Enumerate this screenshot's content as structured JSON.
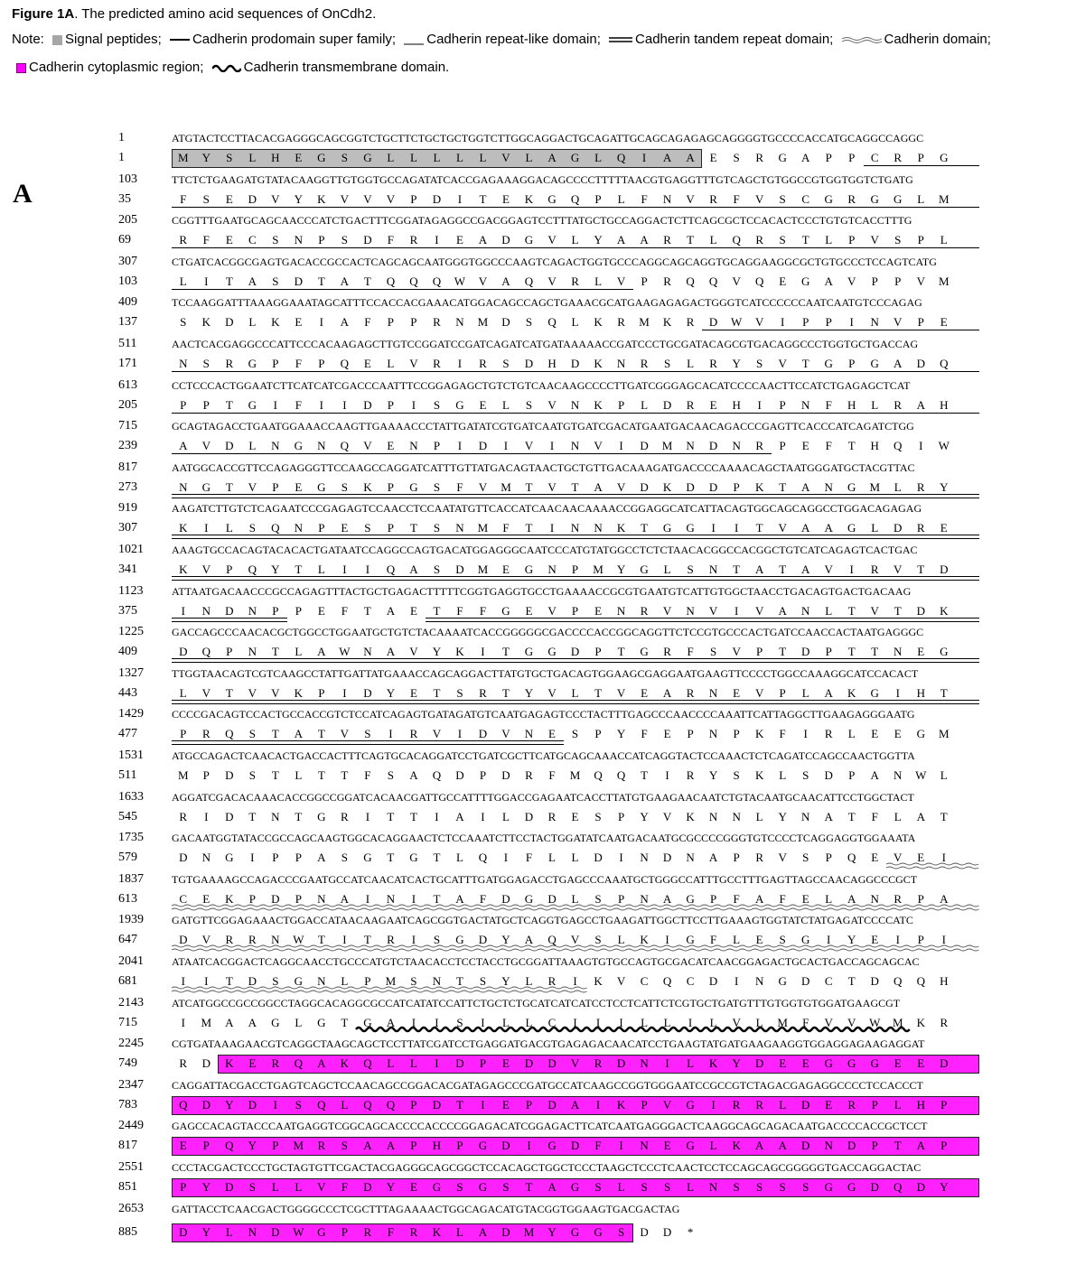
{
  "caption": {
    "title_bold": "Figure 1A",
    "title_rest": ". The predicted amino acid sequences of OnCdh2.",
    "note_label": "Note:",
    "legend": [
      {
        "label": "Signal peptides;",
        "marker": "gray-box-icon"
      },
      {
        "label": "Cadherin prodomain super family;",
        "marker": "thick-line-icon"
      },
      {
        "label": "Cadherin repeat-like domain;",
        "marker": "thin-line-icon"
      },
      {
        "label": "Cadherin tandem repeat domain;",
        "marker": "double-line-icon"
      },
      {
        "label": "Cadherin domain;",
        "marker": "double-wave-icon"
      },
      {
        "label": "Cadherin cytoplasmic region;",
        "marker": "magenta-box-icon"
      },
      {
        "label": "Cadherin transmembrane domain.",
        "marker": "thick-wave-icon"
      }
    ]
  },
  "panel_label": "A",
  "colors": {
    "signal_fill": "#bdbdbd",
    "cytoplasmic_fill": "#ff22ff"
  },
  "rows": [
    {
      "nt_start": "1",
      "nt": "ATGTACTCCTTACACGAGGGCAGCGGTCTGCTTCTGCTGCTGGTCTTGGCAGGACTGCAGATTGCAGCAGAGAGCAGGGGTGCCCCACCATGCAGGCCAGGC",
      "aa_start": "1",
      "aa": "MYSLHEGSGLLLLLVLAGLQIAAESRGAPPCRPG",
      "features": [
        {
          "type": "signal",
          "from": 0,
          "to": 22
        },
        {
          "type": "prodomain",
          "from": 30,
          "to": 34
        }
      ]
    },
    {
      "nt_start": "103",
      "nt": "TTCTCTGAAGATGTATACAAGGTTGTGGTGCCAGATATCACCGAGAAAGGACAGCCCCTTTTTAACGTGAGGTTTGTCAGCTGTGGCCGTGGTGGTCTGATG",
      "aa_start": "35",
      "aa": "FSEDVYKVVVPDITEKGQPLFNVRFVSCGRGGLM",
      "features": [
        {
          "type": "prodomain",
          "from": 0,
          "to": 34
        }
      ]
    },
    {
      "nt_start": "205",
      "nt": "CGGTTTGAATGCAGCAACCCATCTGACTTTCGGATAGAGGCCGACGGAGTCCTTTATGCTGCCAGGACTCTTCAGCGCTCCACACTCCCTGTGTCACCTTTG",
      "aa_start": "69",
      "aa": "RFECSNPSDFRIEADGVLYAARTLQRSTLPVSPL",
      "features": [
        {
          "type": "prodomain",
          "from": 0,
          "to": 34
        }
      ]
    },
    {
      "nt_start": "307",
      "nt": "CTGATCACGGCGAGTGACACCGCCACTCAGCAGCAATGGGTGGCCCAAGTCAGACTGGTGCCCAGGCAGCAGGTGCAGGAAGGCGCTGTGCCCTCCAGTCATG",
      "aa_start": "103",
      "aa": "LITASDTATQQQWVAQVRLVPRQQVQEGAVPPVM",
      "features": [
        {
          "type": "prodomain",
          "from": 0,
          "to": 19
        }
      ]
    },
    {
      "nt_start": "409",
      "nt": "TCCAAGGATTTAAAGGAAATAGCATTTCCACCACGAAACATGGACAGCCAGCTGAAACGCATGAAGAGAGACTGGGTCATCCCCCCAATCAATGTCCCAGAG",
      "aa_start": "137",
      "aa": "SKDLKEIAFPPRNMDSQLKRMKRDWVIPPINVPE",
      "features": [
        {
          "type": "repeatlike",
          "from": 23,
          "to": 34
        }
      ]
    },
    {
      "nt_start": "511",
      "nt": "AACTCACGAGGCCCATTCCCACAAGAGCTTGTCCGGATCCGATCAGATCATGATAAAAACCGATCCCTGCGATACAGCGTGACAGGCCCTGGTGCTGACCAG",
      "aa_start": "171",
      "aa": "NSRGPFPQELVRIRSDHDKNRSLRYSVTGPGADQ",
      "features": [
        {
          "type": "repeatlike",
          "from": 0,
          "to": 34
        }
      ]
    },
    {
      "nt_start": "613",
      "nt": "CCTCCCACTGGAATCTTCATCATCGACCCAATTTCCGGAGAGCTGTCTGTCAACAAGCCCCTTGATCGGGAGCACATCCCCAACTTCCATCTGAGAGCTCAT",
      "aa_start": "205",
      "aa": "PPTGIFIIDPISGELSVNKPLDREHIPNFHLRAH",
      "features": [
        {
          "type": "repeatlike",
          "from": 0,
          "to": 34
        }
      ]
    },
    {
      "nt_start": "715",
      "nt": "GCAGTAGACCTGAATGGAAACCAAGTTGAAAACCCTATTGATATCGTGATCAATGTGATCGACATGAATGACAACAGACCCGAGTTCACCCATCAGATCTGG",
      "aa_start": "239",
      "aa": "AVDLNGNQVENPIDIVINVIDMNDNRPEFTHQIW",
      "features": [
        {
          "type": "repeatlike",
          "from": 0,
          "to": 25
        }
      ]
    },
    {
      "nt_start": "817",
      "nt": "AATGGCACCGTTCCAGAGGGTTCCAAGCCAGGATCATTTGTTATGACAGTAACTGCTGTTGACAAAGATGACCCCAAAACAGCTAATGGGATGCTACGTTAC",
      "aa_start": "273",
      "aa": "NGTVPEGSKPGSFVMTVTAVDKDDPKTANGMLRY",
      "features": [
        {
          "type": "tandem",
          "from": 0,
          "to": 34
        }
      ]
    },
    {
      "nt_start": "919",
      "nt": "AAGATCTTGTCTCAGAATCCCGAGAGTCCAACCTCCAATATGTTCACCATCAACAACAAAACCGGAGGCATCATTACAGTGGCAGCAGGCCTGGACAGAGAG",
      "aa_start": "307",
      "aa": "KILSQNPESPTSNMFTINNKTGGIITVAAGLDRE",
      "features": [
        {
          "type": "tandem",
          "from": 0,
          "to": 34
        }
      ]
    },
    {
      "nt_start": "1021",
      "nt": "AAAGTGCCACAGTACACACTGATAATCCAGGCCAGTGACATGGAGGGCAATCCCATGTATGGCCTCTCTAACACGGCCACGGCTGTCATCAGAGTCACTGAC",
      "aa_start": "341",
      "aa": "KVPQYTLIIQASDMEGNPMYGLSNTATAVIRVTD",
      "features": [
        {
          "type": "tandem",
          "from": 0,
          "to": 34
        }
      ]
    },
    {
      "nt_start": "1123",
      "nt": "ATTAATGACAACCCGCCAGAGTTTACTGCTGAGACTTTTTCGGTGAGGTGCCTGAAAACCGCGTGAATGTCATTGTGGCTAACCTGACAGTGACTGACAAG",
      "aa_start": "375",
      "aa": "INDNPPEFTAETFFGEVPENRVNVIVANLTVTDK",
      "features": [
        {
          "type": "tandem",
          "from": 0,
          "to": 4
        },
        {
          "type": "tandem",
          "from": 11,
          "to": 34
        }
      ]
    },
    {
      "nt_start": "1225",
      "nt": "GACCAGCCCAACACGCTGGCCTGGAATGCTGTCTACAAAATCACCGGGGGCGACCCCACCGGCAGGTTCTCCGTGCCCACTGATCCAACCACTAATGAGGGC",
      "aa_start": "409",
      "aa": "DQPNTLAWNAVYKITGGDPTGRFSVPTDPTTNEG",
      "features": [
        {
          "type": "tandem",
          "from": 0,
          "to": 34
        }
      ]
    },
    {
      "nt_start": "1327",
      "nt": "TTGGTAACAGTCGTCAAGCCTATTGATTATGAAACCAGCAGGACTTATGTGCTGACAGTGGAAGCGAGGAATGAAGTTCCCCTGGCCAAAGGCATCCACACT",
      "aa_start": "443",
      "aa": "LVTVVKPIDYETSRTYVLTVEARNEVPLAKGIHT",
      "features": [
        {
          "type": "tandem",
          "from": 0,
          "to": 34
        }
      ]
    },
    {
      "nt_start": "1429",
      "nt": "CCCCGACAGTCCACTGCCACCGTCTCCATCAGAGTGATAGATGTCAATGAGAGTCCCTACTTTGAGCCCAACCCCAAATTCATTAGGCTTGAAGAGGGAATG",
      "aa_start": "477",
      "aa": "PRQSTATVSIRVIDVNESPYFEPNPKFIRLEEGM",
      "features": [
        {
          "type": "tandem",
          "from": 0,
          "to": 16
        }
      ]
    },
    {
      "nt_start": "1531",
      "nt": "ATGCCAGACTCAACACTGACCACTTTCAGTGCACAGGATCCTGATCGCTTCATGCAGCAAACCATCAGGTACTCCAAACTCTCAGATCCAGCCAACTGGTTA",
      "aa_start": "511",
      "aa": "MPDSTLTTFSAQDPDRFMQQTIRYSKLSDPANWL",
      "features": []
    },
    {
      "nt_start": "1633",
      "nt": "AGGATCGACACAAACACCGGCCGGATCACAACGATTGCCATTTTGGACCGAGAATCACCTTATGTGAAGAACAATCTGTACAATGCAACATTCCTGGCTACT",
      "aa_start": "545",
      "aa": "RIDTNTGRITTIAILDRESPYVKNNLYNATFLAT",
      "features": []
    },
    {
      "nt_start": "1735",
      "nt": "GACAATGGTATACCGCCAGCAAGTGGCACAGGAACTCTCCAAATCTTCCTACTGGATATCAATGACAATGCGCCCCGGGTGTCCCCTCAGGAGGTGGAAATA",
      "aa_start": "579",
      "aa": "DNGIPPASGTGTLQIFLLDINDNAPRVSPQEVEI",
      "features": [
        {
          "type": "cadherin",
          "from": 31,
          "to": 34
        }
      ]
    },
    {
      "nt_start": "1837",
      "nt": "TGTGAAAAGCCAGACCCGAATGCCATCAACATCACTGCATTTGATGGAGACCTGAGCCCAAATGCTGGGCCATTTGCCTTTGAGTTAGCCAACAGGCCCGCT",
      "aa_start": "613",
      "aa": "CEKPDPNAINITAFDGDLSPNAGPFAFELANRPA",
      "features": [
        {
          "type": "cadherin",
          "from": 0,
          "to": 34
        }
      ]
    },
    {
      "nt_start": "1939",
      "nt": "GATGTTCGGAGAAACTGGACCATAACAAGAATCAGCGGTGACTATGCTCAGGTGAGCCTGAAGATTGGCTTCCTTGAAAGTGGTATCTATGAGATCCCCATC",
      "aa_start": "647",
      "aa": "DVRRNWTITRISGDYAQVSLKIGFLESGIYEIPI",
      "features": [
        {
          "type": "cadherin",
          "from": 0,
          "to": 34
        }
      ]
    },
    {
      "nt_start": "2041",
      "nt": "ATAATCACGGACTCAGGCAACCTGCCCATGTCTAACACCTCCTACCTGCGGATTAAAGTGTGCCAGTGCGACATCAACGGAGACTGCACTGACCAGCAGCAC",
      "aa_start": "681",
      "aa": "IITDSGNLPMSNTSYLRIKVCQCDINGDCTDQQH",
      "features": [
        {
          "type": "cadherin",
          "from": 0,
          "to": 17
        }
      ]
    },
    {
      "nt_start": "2143",
      "nt": "ATCATGGCCGCCGGCCTAGGCACAGGCGCCATCATATCCATTCTGCTCTGCATCATCATCCTCCTCATTCTCGTGCTGATGTTTGTGGTGTGGATGAAGCGT",
      "aa_start": "715",
      "aa": "IMAAGLGTGAIISILLCIIILLILVLMFVVWMKR",
      "features": [
        {
          "type": "transmembrane",
          "from": 8,
          "to": 31
        }
      ]
    },
    {
      "nt_start": "2245",
      "nt": "CGTGATAAAGAACGTCAGGCTAAGCAGCTCCTTATCGATCCTGAGGATGACGTGAGAGACAACATCCTGAAGTATGATGAAGAAGGTGGAGGAGAAGAGGAT",
      "aa_start": "749",
      "aa": "RDKERQAKQLLIDPEDDVRDNILKYDEEGGGEED",
      "features": [
        {
          "type": "cytoplasmic",
          "from": 2,
          "to": 34
        }
      ]
    },
    {
      "nt_start": "2347",
      "nt": "CAGGATTACGACCTGAGTCAGCTCCAACAGCCGGACACGATAGAGCCCGATGCCATCAAGCCGGTGGGAATCCGCCGTCTAGACGAGAGGCCCCTCCACCCT",
      "aa_start": "783",
      "aa": "QDYDISQLQQPDTIEPDAIKPVGIRRLDERPLHP",
      "features": [
        {
          "type": "cytoplasmic",
          "from": 0,
          "to": 34
        }
      ]
    },
    {
      "nt_start": "2449",
      "nt": "GAGCCACAGTACCCAATGAGGTCGGCAGCACCCCACCCCGGAGACATCGGAGACTTCATCAATGAGGGACTCAAGGCAGCAGACAATGACCCCACCGCTCCT",
      "aa_start": "817",
      "aa": "EPQYPMRSAAPHPGDIGDFINEGLKAADNDPTAP",
      "features": [
        {
          "type": "cytoplasmic",
          "from": 0,
          "to": 34
        }
      ]
    },
    {
      "nt_start": "2551",
      "nt": "CCCTACGACTCCCTGCTAGTGTTCGACTACGAGGGCAGCGGCTCCACAGCTGGCTCCCTAAGCTCCCTCAACTCCTCCAGCAGCGGGGGTGACCAGGACTAC",
      "aa_start": "851",
      "aa": "PYDSLLVFDYEGSGSTAGSLSSLNSSSSGGDQDY",
      "features": [
        {
          "type": "cytoplasmic",
          "from": 0,
          "to": 34
        }
      ]
    },
    {
      "nt_start": "2653",
      "nt": "GATTACCTCAACGACTGGGGCCCTCGCTTTAGAAAACTGGCAGACATGTACGGTGGAAGTGACGACTAG",
      "aa_start": "885",
      "aa": "DYLNDWGPRFRKLADMYGGSDD*",
      "features": [
        {
          "type": "cytoplasmic",
          "from": 0,
          "to": 19
        }
      ]
    }
  ]
}
